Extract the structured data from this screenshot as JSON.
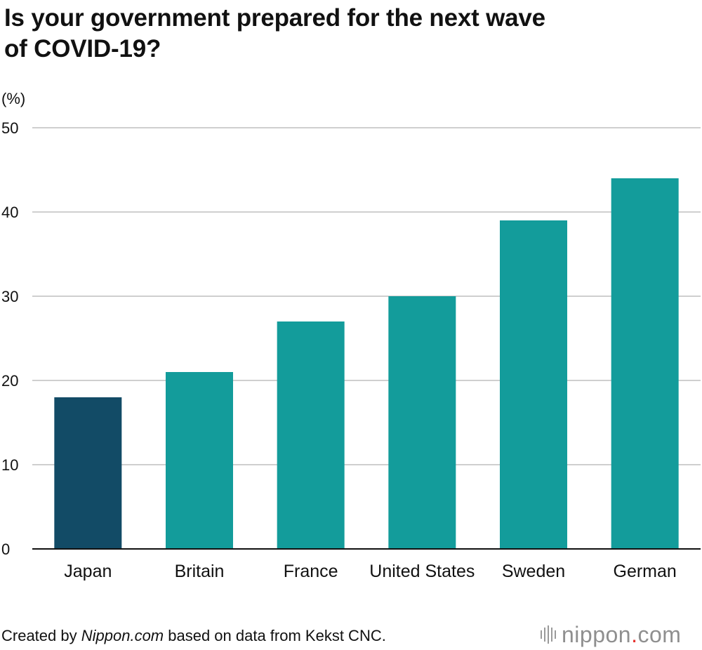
{
  "title_lines": [
    "Is your government prepared for the next wave",
    "of COVID-19?"
  ],
  "colors": {
    "highlight": "#124b66",
    "bar": "#139c9b",
    "grid": "#cfcfcf",
    "axis": "#111111",
    "logo_dot": "#e6322e"
  },
  "chart_data": {
    "type": "bar",
    "title": "Is your government prepared for the next wave of COVID-19?",
    "ylabel": "(%)",
    "xlabel": "",
    "categories": [
      "Japan",
      "Britain",
      "France",
      "United States",
      "Sweden",
      "German"
    ],
    "values": [
      18,
      21,
      27,
      30,
      39,
      44
    ],
    "highlight": "Japan",
    "ylim": [
      0,
      50
    ],
    "yticks": [
      0,
      10,
      20,
      30,
      40,
      50
    ],
    "grid": true
  },
  "footer": {
    "prefix": "Created by ",
    "source_name": "Nippon.com",
    "suffix": " based on data from Kekst CNC."
  },
  "logo": {
    "main": "nippon",
    "dot": ".",
    "tld": "com"
  }
}
